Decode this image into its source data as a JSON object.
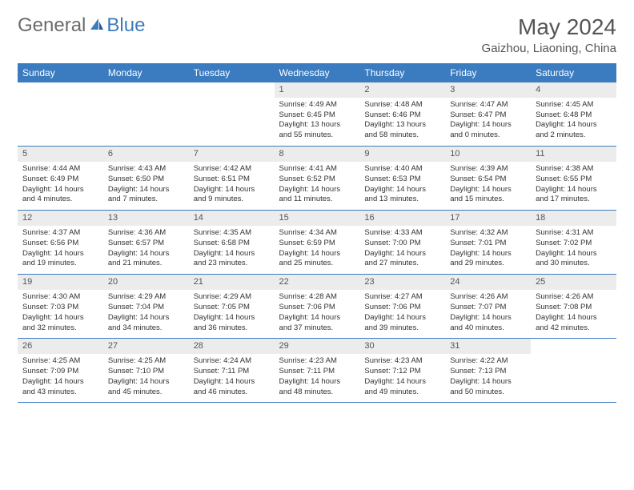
{
  "logo": {
    "text1": "General",
    "text2": "Blue"
  },
  "title": "May 2024",
  "location": "Gaizhou, Liaoning, China",
  "colors": {
    "header_bg": "#3b7bbf",
    "header_fg": "#ffffff",
    "daynum_bg": "#ececec",
    "row_border": "#3b7bbf",
    "logo_gray": "#6b6b6b",
    "logo_blue": "#3b7bbf",
    "text": "#333333"
  },
  "day_headers": [
    "Sunday",
    "Monday",
    "Tuesday",
    "Wednesday",
    "Thursday",
    "Friday",
    "Saturday"
  ],
  "weeks": [
    [
      {
        "n": "",
        "sr": "",
        "ss": "",
        "dl": ""
      },
      {
        "n": "",
        "sr": "",
        "ss": "",
        "dl": ""
      },
      {
        "n": "",
        "sr": "",
        "ss": "",
        "dl": ""
      },
      {
        "n": "1",
        "sr": "Sunrise: 4:49 AM",
        "ss": "Sunset: 6:45 PM",
        "dl": "Daylight: 13 hours and 55 minutes."
      },
      {
        "n": "2",
        "sr": "Sunrise: 4:48 AM",
        "ss": "Sunset: 6:46 PM",
        "dl": "Daylight: 13 hours and 58 minutes."
      },
      {
        "n": "3",
        "sr": "Sunrise: 4:47 AM",
        "ss": "Sunset: 6:47 PM",
        "dl": "Daylight: 14 hours and 0 minutes."
      },
      {
        "n": "4",
        "sr": "Sunrise: 4:45 AM",
        "ss": "Sunset: 6:48 PM",
        "dl": "Daylight: 14 hours and 2 minutes."
      }
    ],
    [
      {
        "n": "5",
        "sr": "Sunrise: 4:44 AM",
        "ss": "Sunset: 6:49 PM",
        "dl": "Daylight: 14 hours and 4 minutes."
      },
      {
        "n": "6",
        "sr": "Sunrise: 4:43 AM",
        "ss": "Sunset: 6:50 PM",
        "dl": "Daylight: 14 hours and 7 minutes."
      },
      {
        "n": "7",
        "sr": "Sunrise: 4:42 AM",
        "ss": "Sunset: 6:51 PM",
        "dl": "Daylight: 14 hours and 9 minutes."
      },
      {
        "n": "8",
        "sr": "Sunrise: 4:41 AM",
        "ss": "Sunset: 6:52 PM",
        "dl": "Daylight: 14 hours and 11 minutes."
      },
      {
        "n": "9",
        "sr": "Sunrise: 4:40 AM",
        "ss": "Sunset: 6:53 PM",
        "dl": "Daylight: 14 hours and 13 minutes."
      },
      {
        "n": "10",
        "sr": "Sunrise: 4:39 AM",
        "ss": "Sunset: 6:54 PM",
        "dl": "Daylight: 14 hours and 15 minutes."
      },
      {
        "n": "11",
        "sr": "Sunrise: 4:38 AM",
        "ss": "Sunset: 6:55 PM",
        "dl": "Daylight: 14 hours and 17 minutes."
      }
    ],
    [
      {
        "n": "12",
        "sr": "Sunrise: 4:37 AM",
        "ss": "Sunset: 6:56 PM",
        "dl": "Daylight: 14 hours and 19 minutes."
      },
      {
        "n": "13",
        "sr": "Sunrise: 4:36 AM",
        "ss": "Sunset: 6:57 PM",
        "dl": "Daylight: 14 hours and 21 minutes."
      },
      {
        "n": "14",
        "sr": "Sunrise: 4:35 AM",
        "ss": "Sunset: 6:58 PM",
        "dl": "Daylight: 14 hours and 23 minutes."
      },
      {
        "n": "15",
        "sr": "Sunrise: 4:34 AM",
        "ss": "Sunset: 6:59 PM",
        "dl": "Daylight: 14 hours and 25 minutes."
      },
      {
        "n": "16",
        "sr": "Sunrise: 4:33 AM",
        "ss": "Sunset: 7:00 PM",
        "dl": "Daylight: 14 hours and 27 minutes."
      },
      {
        "n": "17",
        "sr": "Sunrise: 4:32 AM",
        "ss": "Sunset: 7:01 PM",
        "dl": "Daylight: 14 hours and 29 minutes."
      },
      {
        "n": "18",
        "sr": "Sunrise: 4:31 AM",
        "ss": "Sunset: 7:02 PM",
        "dl": "Daylight: 14 hours and 30 minutes."
      }
    ],
    [
      {
        "n": "19",
        "sr": "Sunrise: 4:30 AM",
        "ss": "Sunset: 7:03 PM",
        "dl": "Daylight: 14 hours and 32 minutes."
      },
      {
        "n": "20",
        "sr": "Sunrise: 4:29 AM",
        "ss": "Sunset: 7:04 PM",
        "dl": "Daylight: 14 hours and 34 minutes."
      },
      {
        "n": "21",
        "sr": "Sunrise: 4:29 AM",
        "ss": "Sunset: 7:05 PM",
        "dl": "Daylight: 14 hours and 36 minutes."
      },
      {
        "n": "22",
        "sr": "Sunrise: 4:28 AM",
        "ss": "Sunset: 7:06 PM",
        "dl": "Daylight: 14 hours and 37 minutes."
      },
      {
        "n": "23",
        "sr": "Sunrise: 4:27 AM",
        "ss": "Sunset: 7:06 PM",
        "dl": "Daylight: 14 hours and 39 minutes."
      },
      {
        "n": "24",
        "sr": "Sunrise: 4:26 AM",
        "ss": "Sunset: 7:07 PM",
        "dl": "Daylight: 14 hours and 40 minutes."
      },
      {
        "n": "25",
        "sr": "Sunrise: 4:26 AM",
        "ss": "Sunset: 7:08 PM",
        "dl": "Daylight: 14 hours and 42 minutes."
      }
    ],
    [
      {
        "n": "26",
        "sr": "Sunrise: 4:25 AM",
        "ss": "Sunset: 7:09 PM",
        "dl": "Daylight: 14 hours and 43 minutes."
      },
      {
        "n": "27",
        "sr": "Sunrise: 4:25 AM",
        "ss": "Sunset: 7:10 PM",
        "dl": "Daylight: 14 hours and 45 minutes."
      },
      {
        "n": "28",
        "sr": "Sunrise: 4:24 AM",
        "ss": "Sunset: 7:11 PM",
        "dl": "Daylight: 14 hours and 46 minutes."
      },
      {
        "n": "29",
        "sr": "Sunrise: 4:23 AM",
        "ss": "Sunset: 7:11 PM",
        "dl": "Daylight: 14 hours and 48 minutes."
      },
      {
        "n": "30",
        "sr": "Sunrise: 4:23 AM",
        "ss": "Sunset: 7:12 PM",
        "dl": "Daylight: 14 hours and 49 minutes."
      },
      {
        "n": "31",
        "sr": "Sunrise: 4:22 AM",
        "ss": "Sunset: 7:13 PM",
        "dl": "Daylight: 14 hours and 50 minutes."
      },
      {
        "n": "",
        "sr": "",
        "ss": "",
        "dl": ""
      }
    ]
  ]
}
